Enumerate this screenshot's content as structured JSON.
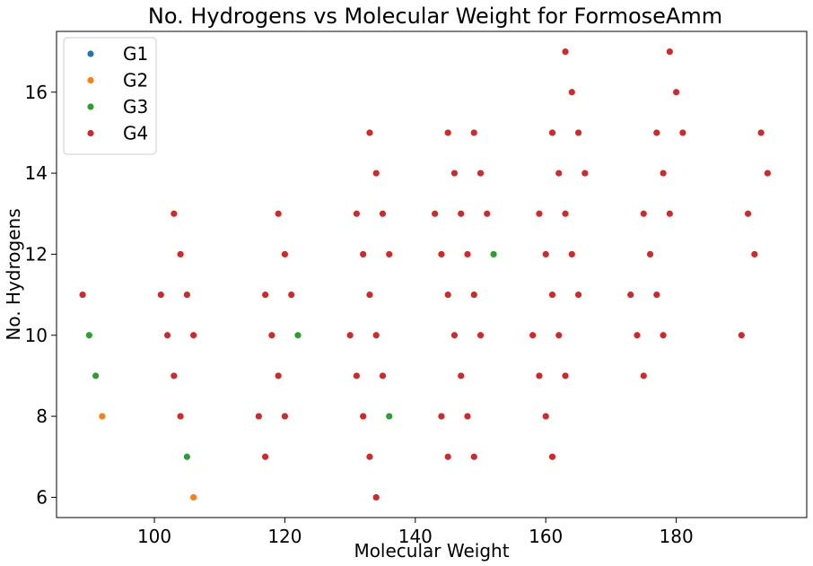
{
  "chart_data": {
    "type": "scatter",
    "title": "No. Hydrogens vs Molecular Weight for FormoseAmm",
    "xlabel": "Molecular Weight",
    "ylabel": "No. Hydrogens",
    "xlim": [
      85,
      200
    ],
    "ylim": [
      5.5,
      17.5
    ],
    "x_ticks": [
      100,
      120,
      140,
      160,
      180
    ],
    "y_ticks": [
      6,
      8,
      10,
      12,
      14,
      16
    ],
    "grid": false,
    "legend_position": "top-left",
    "series": [
      {
        "name": "G1",
        "color": "#1f77b4",
        "points": []
      },
      {
        "name": "G2",
        "color": "#ff7f0e",
        "points": [
          [
            92,
            8
          ],
          [
            106,
            6
          ]
        ]
      },
      {
        "name": "G3",
        "color": "#2ca02c",
        "points": [
          [
            90,
            10
          ],
          [
            91,
            9
          ],
          [
            105,
            7
          ],
          [
            122,
            10
          ],
          [
            136,
            8
          ],
          [
            152,
            12
          ]
        ]
      },
      {
        "name": "G4",
        "color": "#d62728",
        "points": [
          [
            89,
            11
          ],
          [
            101,
            11
          ],
          [
            102,
            10
          ],
          [
            103,
            13
          ],
          [
            103,
            9
          ],
          [
            104,
            12
          ],
          [
            104,
            8
          ],
          [
            105,
            11
          ],
          [
            106,
            10
          ],
          [
            116,
            8
          ],
          [
            117,
            11
          ],
          [
            117,
            7
          ],
          [
            118,
            10
          ],
          [
            119,
            13
          ],
          [
            119,
            9
          ],
          [
            120,
            12
          ],
          [
            120,
            8
          ],
          [
            121,
            11
          ],
          [
            130,
            10
          ],
          [
            131,
            13
          ],
          [
            131,
            9
          ],
          [
            132,
            12
          ],
          [
            132,
            8
          ],
          [
            133,
            15
          ],
          [
            133,
            11
          ],
          [
            133,
            7
          ],
          [
            134,
            14
          ],
          [
            134,
            10
          ],
          [
            134,
            6
          ],
          [
            135,
            13
          ],
          [
            135,
            9
          ],
          [
            136,
            12
          ],
          [
            143,
            13
          ],
          [
            144,
            12
          ],
          [
            144,
            8
          ],
          [
            145,
            15
          ],
          [
            145,
            11
          ],
          [
            145,
            7
          ],
          [
            146,
            14
          ],
          [
            146,
            10
          ],
          [
            147,
            13
          ],
          [
            147,
            9
          ],
          [
            148,
            12
          ],
          [
            148,
            8
          ],
          [
            149,
            15
          ],
          [
            149,
            11
          ],
          [
            149,
            7
          ],
          [
            150,
            14
          ],
          [
            150,
            10
          ],
          [
            151,
            13
          ],
          [
            158,
            10
          ],
          [
            159,
            13
          ],
          [
            159,
            9
          ],
          [
            160,
            12
          ],
          [
            160,
            8
          ],
          [
            161,
            15
          ],
          [
            161,
            11
          ],
          [
            161,
            7
          ],
          [
            162,
            14
          ],
          [
            162,
            10
          ],
          [
            163,
            17
          ],
          [
            163,
            13
          ],
          [
            163,
            9
          ],
          [
            164,
            16
          ],
          [
            164,
            12
          ],
          [
            165,
            15
          ],
          [
            165,
            11
          ],
          [
            166,
            14
          ],
          [
            173,
            11
          ],
          [
            174,
            10
          ],
          [
            175,
            13
          ],
          [
            175,
            9
          ],
          [
            176,
            12
          ],
          [
            177,
            15
          ],
          [
            177,
            11
          ],
          [
            178,
            14
          ],
          [
            178,
            10
          ],
          [
            179,
            17
          ],
          [
            179,
            13
          ],
          [
            180,
            16
          ],
          [
            181,
            15
          ],
          [
            190,
            10
          ],
          [
            191,
            13
          ],
          [
            192,
            12
          ],
          [
            193,
            15
          ],
          [
            194,
            14
          ]
        ]
      }
    ]
  }
}
